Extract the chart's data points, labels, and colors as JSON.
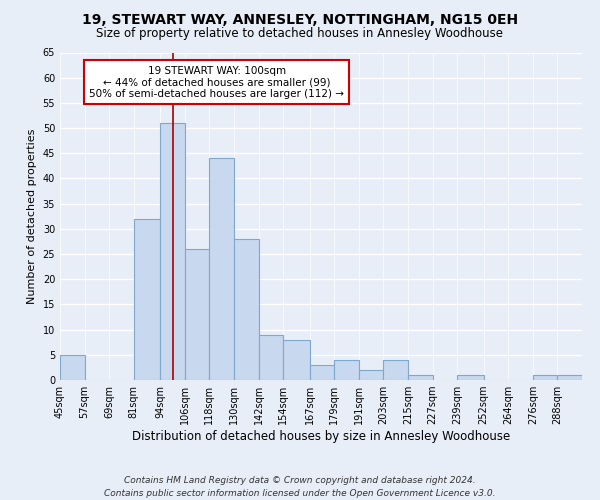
{
  "title": "19, STEWART WAY, ANNESLEY, NOTTINGHAM, NG15 0EH",
  "subtitle": "Size of property relative to detached houses in Annesley Woodhouse",
  "xlabel": "Distribution of detached houses by size in Annesley Woodhouse",
  "ylabel": "Number of detached properties",
  "footer_line1": "Contains HM Land Registry data © Crown copyright and database right 2024.",
  "footer_line2": "Contains public sector information licensed under the Open Government Licence v3.0.",
  "bin_labels": [
    "45sqm",
    "57sqm",
    "69sqm",
    "81sqm",
    "94sqm",
    "106sqm",
    "118sqm",
    "130sqm",
    "142sqm",
    "154sqm",
    "167sqm",
    "179sqm",
    "191sqm",
    "203sqm",
    "215sqm",
    "227sqm",
    "239sqm",
    "252sqm",
    "264sqm",
    "276sqm",
    "288sqm"
  ],
  "bin_edges": [
    45,
    57,
    69,
    81,
    94,
    106,
    118,
    130,
    142,
    154,
    167,
    179,
    191,
    203,
    215,
    227,
    239,
    252,
    264,
    276,
    288,
    300
  ],
  "counts": [
    5,
    0,
    0,
    32,
    51,
    26,
    44,
    28,
    9,
    8,
    3,
    4,
    2,
    4,
    1,
    0,
    1,
    0,
    0,
    1,
    1
  ],
  "bar_color": "#c8d8ee",
  "bar_edge_color": "#7fa8cc",
  "vline_x": 100,
  "vline_color": "#aa0000",
  "annotation_title": "19 STEWART WAY: 100sqm",
  "annotation_line1": "← 44% of detached houses are smaller (99)",
  "annotation_line2": "50% of semi-detached houses are larger (112) →",
  "annotation_box_color": "white",
  "annotation_box_edge": "#cc0000",
  "ylim": [
    0,
    65
  ],
  "yticks": [
    0,
    5,
    10,
    15,
    20,
    25,
    30,
    35,
    40,
    45,
    50,
    55,
    60,
    65
  ],
  "background_color": "#e8eef8",
  "grid_color": "white",
  "title_fontsize": 10,
  "subtitle_fontsize": 8.5,
  "xlabel_fontsize": 8.5,
  "ylabel_fontsize": 8,
  "tick_fontsize": 7,
  "annotation_fontsize": 7.5,
  "footer_fontsize": 6.5
}
